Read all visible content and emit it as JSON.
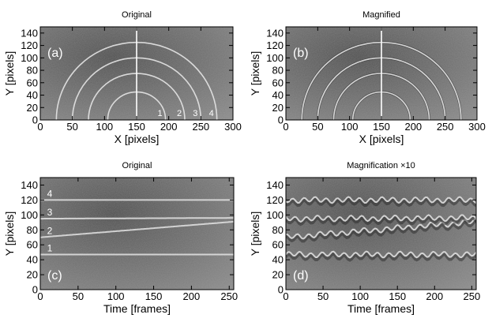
{
  "chart_data": [
    {
      "type": "heatmap",
      "panel_label": "(a)",
      "title": "Original",
      "xlabel": "X [pixels]",
      "ylabel": "Y [pixels]",
      "xlim": [
        0,
        300
      ],
      "ylim": [
        0,
        150
      ],
      "xticks": [
        0,
        50,
        100,
        150,
        200,
        250,
        300
      ],
      "yticks": [
        0,
        20,
        40,
        60,
        80,
        100,
        120,
        140
      ],
      "image": "grayscale",
      "arcs": {
        "center_x": 150,
        "radii": [
          45,
          75,
          100,
          125
        ],
        "labels": [
          "1",
          "2",
          "3",
          "4"
        ]
      },
      "vertical_line_x": 150
    },
    {
      "type": "heatmap",
      "panel_label": "(b)",
      "title": "Magnified",
      "xlabel": "X [pixels]",
      "ylabel": "Y [pixels]",
      "xlim": [
        0,
        300
      ],
      "ylim": [
        0,
        150
      ],
      "xticks": [
        0,
        50,
        100,
        150,
        200,
        250,
        300
      ],
      "yticks": [
        0,
        20,
        40,
        60,
        80,
        100,
        120,
        140
      ],
      "image": "grayscale",
      "arcs": {
        "center_x": 150,
        "radii": [
          45,
          75,
          100,
          125
        ],
        "labels": []
      },
      "vertical_line_x": 150
    },
    {
      "type": "heatmap",
      "panel_label": "(c)",
      "title": "Original",
      "xlabel": "Time [frames]",
      "ylabel": "Y [pixels]",
      "xlim": [
        0,
        256
      ],
      "ylim": [
        0,
        150
      ],
      "xticks": [
        0,
        50,
        100,
        150,
        200,
        250
      ],
      "yticks": [
        0,
        20,
        40,
        60,
        80,
        100,
        120,
        140
      ],
      "image": "grayscale",
      "tracks": [
        {
          "label": "1",
          "y_start": 47,
          "y_end": 47,
          "wiggle": 0
        },
        {
          "label": "2",
          "y_start": 70,
          "y_end": 91,
          "wiggle": 0
        },
        {
          "label": "3",
          "y_start": 95,
          "y_end": 96,
          "wiggle": 0
        },
        {
          "label": "4",
          "y_start": 120,
          "y_end": 120,
          "wiggle": 0
        }
      ]
    },
    {
      "type": "heatmap",
      "panel_label": "(d)",
      "title": "Magnification ×10",
      "xlabel": "Time [frames]",
      "ylabel": "Y [pixels]",
      "xlim": [
        0,
        256
      ],
      "ylim": [
        0,
        150
      ],
      "xticks": [
        0,
        50,
        100,
        150,
        200,
        250
      ],
      "yticks": [
        0,
        20,
        40,
        60,
        80,
        100,
        120,
        140
      ],
      "image": "grayscale",
      "tracks": [
        {
          "label": "",
          "y_start": 47,
          "y_end": 47,
          "wiggle": 3
        },
        {
          "label": "",
          "y_start": 70,
          "y_end": 91,
          "wiggle": 3
        },
        {
          "label": "",
          "y_start": 95,
          "y_end": 96,
          "wiggle": 3
        },
        {
          "label": "",
          "y_start": 120,
          "y_end": 120,
          "wiggle": 3
        }
      ]
    }
  ]
}
